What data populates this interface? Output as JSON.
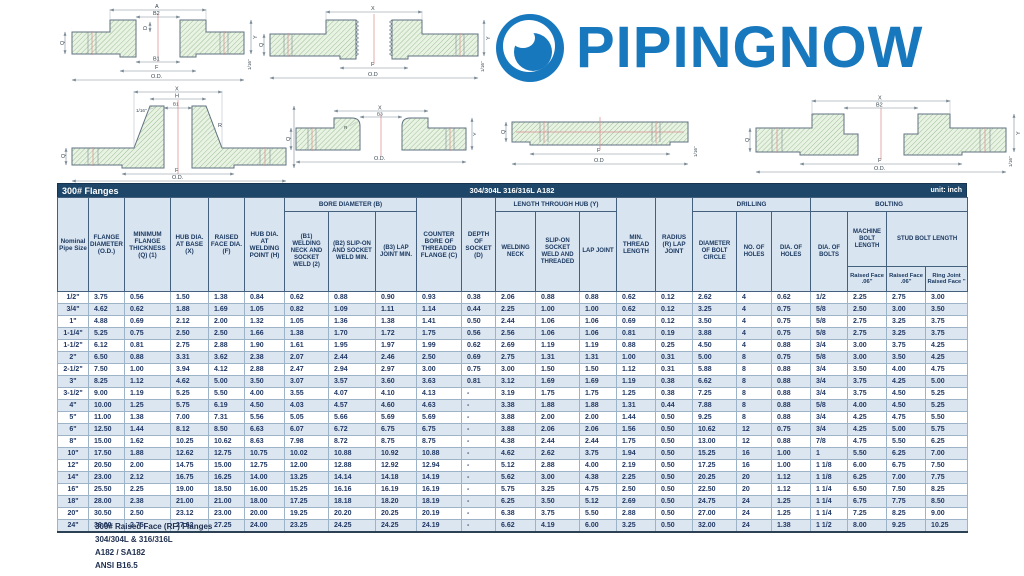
{
  "logo": {
    "text": "PIPINGNOW",
    "color": "#1878be",
    "icon": "pipe-circle-icon"
  },
  "table": {
    "title": "300# Flanges",
    "subtitle": "304/304L 316/316L A182",
    "unit": "unit: inch",
    "groups": {
      "bore": "BORE DIAMETER (B)",
      "lth": "LENGTH THROUGH HUB (Y)",
      "drilling": "DRILLING",
      "bolting": "BOLTING",
      "mbl": "MACHINE BOLT LENGTH",
      "sbl": "STUD BOLT LENGTH"
    },
    "cols": {
      "nps": "Nominal Pipe Size",
      "od": "FLANGE DIAMETER (O.D.)",
      "q": "MINIMUM FLANGE THICKNESS (Q) (1)",
      "x": "HUB DIA. AT BASE (X)",
      "f": "RAISED FACE DIA. (F)",
      "h": "HUB DIA. AT WELDING POINT (H)",
      "b1": "(B1) WELDING NECK AND SOCKET WELD (2)",
      "b2": "(B2) SLIP-ON AND SOCKET WELD MIN.",
      "b3": "(B3) LAP JOINT MIN.",
      "c": "COUNTER BORE OF THREADED FLANGE (C)",
      "d": "DEPTH OF SOCKET (D)",
      "wn": "WELDING NECK",
      "so": "SLIP-ON SOCKET WELD AND THREADED",
      "lj": "LAP JOINT",
      "thread": "MIN. THREAD LENGTH",
      "radius": "RADIUS (R) LAP JOINT",
      "bc": "DIAMETER OF BOLT CIRCLE",
      "nholes": "NO. OF HOLES",
      "dholes": "DIA. OF HOLES",
      "bolts": "DIA. OF BOLTS",
      "mbl_rf": "Raised Face .06\"",
      "sbl_rf": "Raised Face .06\"",
      "sbl_rj": "Ring Joint Raised Face \""
    },
    "rows": [
      [
        "1/2\"",
        "3.75",
        "0.56",
        "1.50",
        "1.38",
        "0.84",
        "0.62",
        "0.88",
        "0.90",
        "0.93",
        "0.38",
        "2.06",
        "0.88",
        "0.88",
        "0.62",
        "0.12",
        "2.62",
        "4",
        "0.62",
        "1/2",
        "2.25",
        "2.75",
        "3.00"
      ],
      [
        "3/4\"",
        "4.62",
        "0.62",
        "1.88",
        "1.69",
        "1.05",
        "0.82",
        "1.09",
        "1.11",
        "1.14",
        "0.44",
        "2.25",
        "1.00",
        "1.00",
        "0.62",
        "0.12",
        "3.25",
        "4",
        "0.75",
        "5/8",
        "2.50",
        "3.00",
        "3.50"
      ],
      [
        "1\"",
        "4.88",
        "0.69",
        "2.12",
        "2.00",
        "1.32",
        "1.05",
        "1.36",
        "1.38",
        "1.41",
        "0.50",
        "2.44",
        "1.06",
        "1.06",
        "0.69",
        "0.12",
        "3.50",
        "4",
        "0.75",
        "5/8",
        "2.75",
        "3.25",
        "3.75"
      ],
      [
        "1-1/4\"",
        "5.25",
        "0.75",
        "2.50",
        "2.50",
        "1.66",
        "1.38",
        "1.70",
        "1.72",
        "1.75",
        "0.56",
        "2.56",
        "1.06",
        "1.06",
        "0.81",
        "0.19",
        "3.88",
        "4",
        "0.75",
        "5/8",
        "2.75",
        "3.25",
        "3.75"
      ],
      [
        "1-1/2\"",
        "6.12",
        "0.81",
        "2.75",
        "2.88",
        "1.90",
        "1.61",
        "1.95",
        "1.97",
        "1.99",
        "0.62",
        "2.69",
        "1.19",
        "1.19",
        "0.88",
        "0.25",
        "4.50",
        "4",
        "0.88",
        "3/4",
        "3.00",
        "3.75",
        "4.25"
      ],
      [
        "2\"",
        "6.50",
        "0.88",
        "3.31",
        "3.62",
        "2.38",
        "2.07",
        "2.44",
        "2.46",
        "2.50",
        "0.69",
        "2.75",
        "1.31",
        "1.31",
        "1.00",
        "0.31",
        "5.00",
        "8",
        "0.75",
        "5/8",
        "3.00",
        "3.50",
        "4.25"
      ],
      [
        "2-1/2\"",
        "7.50",
        "1.00",
        "3.94",
        "4.12",
        "2.88",
        "2.47",
        "2.94",
        "2.97",
        "3.00",
        "0.75",
        "3.00",
        "1.50",
        "1.50",
        "1.12",
        "0.31",
        "5.88",
        "8",
        "0.88",
        "3/4",
        "3.50",
        "4.00",
        "4.75"
      ],
      [
        "3\"",
        "8.25",
        "1.12",
        "4.62",
        "5.00",
        "3.50",
        "3.07",
        "3.57",
        "3.60",
        "3.63",
        "0.81",
        "3.12",
        "1.69",
        "1.69",
        "1.19",
        "0.38",
        "6.62",
        "8",
        "0.88",
        "3/4",
        "3.75",
        "4.25",
        "5.00"
      ],
      [
        "3-1/2\"",
        "9.00",
        "1.19",
        "5.25",
        "5.50",
        "4.00",
        "3.55",
        "4.07",
        "4.10",
        "4.13",
        "-",
        "3.19",
        "1.75",
        "1.75",
        "1.25",
        "0.38",
        "7.25",
        "8",
        "0.88",
        "3/4",
        "3.75",
        "4.50",
        "5.25"
      ],
      [
        "4\"",
        "10.00",
        "1.25",
        "5.75",
        "6.19",
        "4.50",
        "4.03",
        "4.57",
        "4.60",
        "4.63",
        "-",
        "3.38",
        "1.88",
        "1.88",
        "1.31",
        "0.44",
        "7.88",
        "8",
        "0.88",
        "5/8",
        "4.00",
        "4.50",
        "5.25"
      ],
      [
        "5\"",
        "11.00",
        "1.38",
        "7.00",
        "7.31",
        "5.56",
        "5.05",
        "5.66",
        "5.69",
        "5.69",
        "-",
        "3.88",
        "2.00",
        "2.00",
        "1.44",
        "0.50",
        "9.25",
        "8",
        "0.88",
        "3/4",
        "4.25",
        "4.75",
        "5.50"
      ],
      [
        "6\"",
        "12.50",
        "1.44",
        "8.12",
        "8.50",
        "6.63",
        "6.07",
        "6.72",
        "6.75",
        "6.75",
        "-",
        "3.88",
        "2.06",
        "2.06",
        "1.56",
        "0.50",
        "10.62",
        "12",
        "0.75",
        "3/4",
        "4.25",
        "5.00",
        "5.75"
      ],
      [
        "8\"",
        "15.00",
        "1.62",
        "10.25",
        "10.62",
        "8.63",
        "7.98",
        "8.72",
        "8.75",
        "8.75",
        "-",
        "4.38",
        "2.44",
        "2.44",
        "1.75",
        "0.50",
        "13.00",
        "12",
        "0.88",
        "7/8",
        "4.75",
        "5.50",
        "6.25"
      ],
      [
        "10\"",
        "17.50",
        "1.88",
        "12.62",
        "12.75",
        "10.75",
        "10.02",
        "10.88",
        "10.92",
        "10.88",
        "-",
        "4.62",
        "2.62",
        "3.75",
        "1.94",
        "0.50",
        "15.25",
        "16",
        "1.00",
        "1",
        "5.50",
        "6.25",
        "7.00"
      ],
      [
        "12\"",
        "20.50",
        "2.00",
        "14.75",
        "15.00",
        "12.75",
        "12.00",
        "12.88",
        "12.92",
        "12.94",
        "-",
        "5.12",
        "2.88",
        "4.00",
        "2.19",
        "0.50",
        "17.25",
        "16",
        "1.00",
        "1 1/8",
        "6.00",
        "6.75",
        "7.50"
      ],
      [
        "14\"",
        "23.00",
        "2.12",
        "16.75",
        "16.25",
        "14.00",
        "13.25",
        "14.14",
        "14.18",
        "14.19",
        "-",
        "5.62",
        "3.00",
        "4.38",
        "2.25",
        "0.50",
        "20.25",
        "20",
        "1.12",
        "1 1/8",
        "6.25",
        "7.00",
        "7.75"
      ],
      [
        "16\"",
        "25.50",
        "2.25",
        "19.00",
        "18.50",
        "16.00",
        "15.25",
        "16.16",
        "16.19",
        "16.19",
        "-",
        "5.75",
        "3.25",
        "4.75",
        "2.50",
        "0.50",
        "22.50",
        "20",
        "1.12",
        "1 1/4",
        "6.50",
        "7.50",
        "8.25"
      ],
      [
        "18\"",
        "28.00",
        "2.38",
        "21.00",
        "21.00",
        "18.00",
        "17.25",
        "18.18",
        "18.20",
        "18.19",
        "-",
        "6.25",
        "3.50",
        "5.12",
        "2.69",
        "0.50",
        "24.75",
        "24",
        "1.25",
        "1 1/4",
        "6.75",
        "7.75",
        "8.50"
      ],
      [
        "20\"",
        "30.50",
        "2.50",
        "23.12",
        "23.00",
        "20.00",
        "19.25",
        "20.20",
        "20.25",
        "20.19",
        "-",
        "6.38",
        "3.75",
        "5.50",
        "2.88",
        "0.50",
        "27.00",
        "24",
        "1.25",
        "1 1/4",
        "7.25",
        "8.25",
        "9.00"
      ],
      [
        "24\"",
        "36.00",
        "2.75",
        "27.62",
        "27.25",
        "24.00",
        "23.25",
        "24.25",
        "24.25",
        "24.19",
        "-",
        "6.62",
        "4.19",
        "6.00",
        "3.25",
        "0.50",
        "32.00",
        "24",
        "1.38",
        "1 1/2",
        "8.00",
        "9.25",
        "10.25"
      ]
    ]
  },
  "drawings": {
    "slip_on": {
      "a": "A",
      "b2": "B2",
      "d": "D",
      "b1": "B1",
      "f": "F",
      "od": "O.D.",
      "q": "Q",
      "y": "Y",
      "rf": "1/16\""
    },
    "threaded": {
      "x": "X",
      "f": "F",
      "od": "O.D",
      "q": "Q",
      "y": "Y",
      "rf": "1/16\""
    },
    "weld_neck": {
      "x": "X",
      "h": "H",
      "b1": "B1",
      "notch": "1/16\"",
      "r": "R",
      "q": "Q",
      "y": "Y",
      "f": "F",
      "od": "O.D."
    },
    "lap_joint": {
      "x": "X",
      "b3": "B3",
      "r": "R",
      "q": "Q",
      "y": "Y",
      "od": "O.D."
    },
    "blind": {
      "q": "Q",
      "f": "F",
      "od": "O.D",
      "rf": "1/16\""
    },
    "socket_weld": {
      "x": "X",
      "b2": "B2",
      "q": "Q",
      "f": "F",
      "od": "O.D.",
      "y": "Y",
      "rf": "1/16\""
    }
  },
  "notes": {
    "lines": [
      "300# Raised Face (RF) Flanges",
      "304/304L & 316/316L",
      "A182 / SA182",
      "ANSI B16.5"
    ]
  }
}
